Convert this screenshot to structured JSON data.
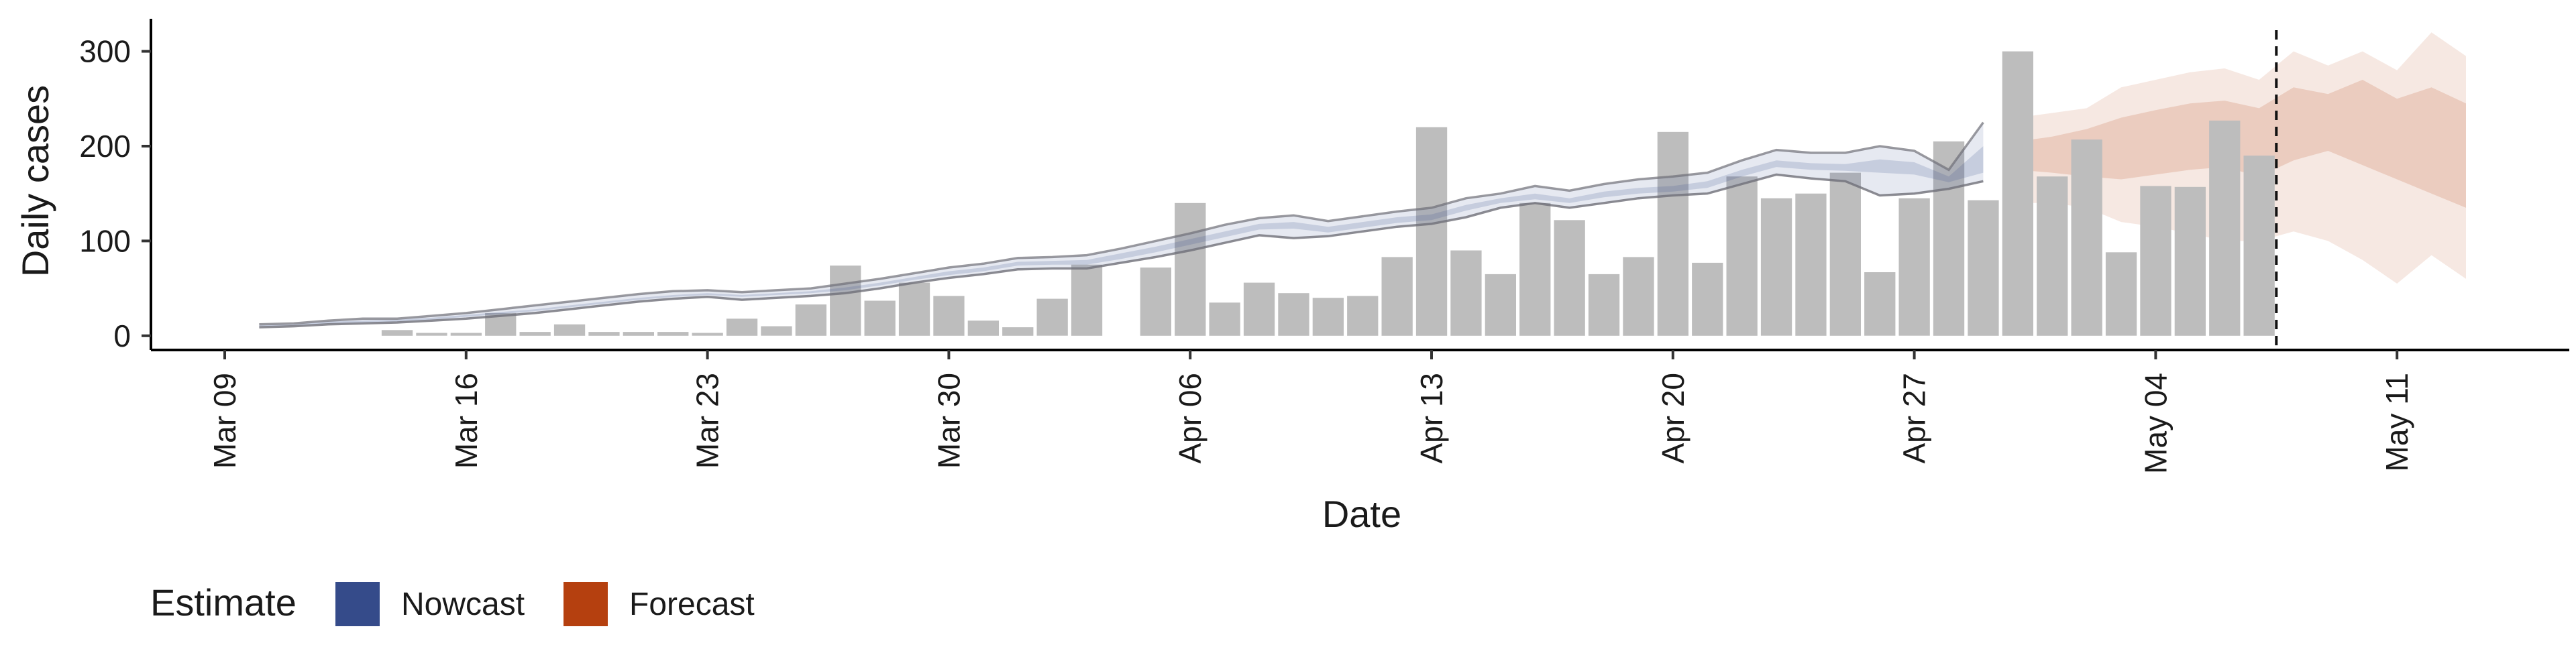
{
  "chart_data": {
    "type": "bar",
    "xlabel": "Date",
    "ylabel": "Daily cases",
    "ylim": [
      -15,
      340
    ],
    "y_ticks": [
      0,
      100,
      200,
      300
    ],
    "x_tick_labels": [
      "Mar 09",
      "Mar 16",
      "Mar 23",
      "Mar 30",
      "Apr 06",
      "Apr 13",
      "Apr 20",
      "Apr 27",
      "May 04",
      "May 11"
    ],
    "x_tick_dates": [
      "2020-03-09",
      "2020-03-16",
      "2020-03-23",
      "2020-03-30",
      "2020-04-06",
      "2020-04-13",
      "2020-04-20",
      "2020-04-27",
      "2020-05-04",
      "2020-05-11"
    ],
    "x_range": [
      "2020-03-09",
      "2020-05-17"
    ],
    "cutoff_date": "2020-05-07",
    "grid": false,
    "legend_position": "bottom-left",
    "legend": {
      "title": "Estimate",
      "items": [
        {
          "label": "Nowcast",
          "color": "#354B8A"
        },
        {
          "label": "Forecast",
          "color": "#B5400F"
        }
      ]
    },
    "colors": {
      "bars": "#bdbdbd",
      "nowcast": "#354B8A",
      "forecast": "#B5400F",
      "nowcast_line": "#6f6f78",
      "cutoff_line": "#111111"
    },
    "observed_cases": {
      "dates": [
        "2020-03-14",
        "2020-03-15",
        "2020-03-16",
        "2020-03-17",
        "2020-03-18",
        "2020-03-19",
        "2020-03-20",
        "2020-03-21",
        "2020-03-22",
        "2020-03-23",
        "2020-03-24",
        "2020-03-25",
        "2020-03-26",
        "2020-03-27",
        "2020-03-28",
        "2020-03-29",
        "2020-03-30",
        "2020-03-31",
        "2020-04-01",
        "2020-04-02",
        "2020-04-03",
        "2020-04-04",
        "2020-04-05",
        "2020-04-06",
        "2020-04-07",
        "2020-04-08",
        "2020-04-09",
        "2020-04-10",
        "2020-04-11",
        "2020-04-12",
        "2020-04-13",
        "2020-04-14",
        "2020-04-15",
        "2020-04-16",
        "2020-04-17",
        "2020-04-18",
        "2020-04-19",
        "2020-04-20",
        "2020-04-21",
        "2020-04-22",
        "2020-04-23",
        "2020-04-24",
        "2020-04-25",
        "2020-04-26",
        "2020-04-27",
        "2020-04-28",
        "2020-04-29",
        "2020-04-30",
        "2020-05-01",
        "2020-05-02",
        "2020-05-03",
        "2020-05-04",
        "2020-05-05",
        "2020-05-06",
        "2020-05-07"
      ],
      "values": [
        6,
        3,
        3,
        24,
        4,
        12,
        4,
        4,
        4,
        3,
        18,
        10,
        33,
        74,
        37,
        56,
        42,
        16,
        9,
        39,
        75,
        0,
        72,
        140,
        35,
        56,
        45,
        40,
        42,
        83,
        220,
        90,
        65,
        140,
        122,
        65,
        83,
        215,
        77,
        168,
        145,
        150,
        172,
        67,
        145,
        205,
        143,
        300,
        168,
        207,
        88,
        158,
        157,
        227,
        190
      ]
    },
    "nowcast": {
      "dates": [
        "2020-03-10",
        "2020-03-11",
        "2020-03-12",
        "2020-03-13",
        "2020-03-14",
        "2020-03-15",
        "2020-03-16",
        "2020-03-17",
        "2020-03-18",
        "2020-03-19",
        "2020-03-20",
        "2020-03-21",
        "2020-03-22",
        "2020-03-23",
        "2020-03-24",
        "2020-03-25",
        "2020-03-26",
        "2020-03-27",
        "2020-03-28",
        "2020-03-29",
        "2020-03-30",
        "2020-03-31",
        "2020-04-01",
        "2020-04-02",
        "2020-04-03",
        "2020-04-04",
        "2020-04-05",
        "2020-04-06",
        "2020-04-07",
        "2020-04-08",
        "2020-04-09",
        "2020-04-10",
        "2020-04-11",
        "2020-04-12",
        "2020-04-13",
        "2020-04-14",
        "2020-04-15",
        "2020-04-16",
        "2020-04-17",
        "2020-04-18",
        "2020-04-19",
        "2020-04-20",
        "2020-04-21",
        "2020-04-22",
        "2020-04-23",
        "2020-04-24",
        "2020-04-25",
        "2020-04-26",
        "2020-04-27",
        "2020-04-28",
        "2020-04-29"
      ],
      "upper_90": [
        12,
        13,
        16,
        18,
        18,
        21,
        24,
        28,
        32,
        36,
        40,
        44,
        47,
        48,
        46,
        48,
        50,
        55,
        60,
        66,
        72,
        76,
        82,
        83,
        85,
        92,
        100,
        108,
        117,
        124,
        127,
        121,
        126,
        131,
        135,
        145,
        150,
        158,
        153,
        160,
        165,
        168,
        172,
        185,
        196,
        193,
        193,
        200,
        195,
        175,
        225
      ],
      "upper_50": [
        11,
        12,
        15,
        16,
        17,
        19,
        22,
        25,
        28,
        32,
        36,
        40,
        43,
        45,
        43,
        45,
        47,
        51,
        56,
        62,
        68,
        72,
        78,
        79,
        80,
        87,
        94,
        102,
        110,
        118,
        120,
        115,
        120,
        125,
        128,
        138,
        145,
        150,
        145,
        152,
        156,
        158,
        163,
        175,
        185,
        182,
        181,
        186,
        183,
        168,
        200
      ],
      "lower_50": [
        10,
        11,
        13,
        14,
        15,
        17,
        20,
        23,
        26,
        30,
        34,
        38,
        41,
        43,
        41,
        43,
        45,
        48,
        53,
        59,
        64,
        68,
        74,
        75,
        75,
        81,
        88,
        96,
        104,
        112,
        113,
        109,
        114,
        119,
        122,
        132,
        140,
        144,
        140,
        146,
        150,
        152,
        156,
        168,
        178,
        175,
        174,
        172,
        170,
        162,
        172
      ],
      "lower_90": [
        9,
        10,
        12,
        13,
        14,
        16,
        18,
        21,
        24,
        28,
        32,
        36,
        39,
        41,
        38,
        40,
        42,
        45,
        50,
        56,
        61,
        65,
        70,
        71,
        71,
        77,
        83,
        90,
        98,
        106,
        103,
        105,
        110,
        115,
        118,
        125,
        135,
        140,
        135,
        140,
        145,
        148,
        150,
        160,
        170,
        166,
        163,
        148,
        150,
        155,
        163
      ]
    },
    "forecast": {
      "dates": [
        "2020-04-30",
        "2020-05-01",
        "2020-05-02",
        "2020-05-03",
        "2020-05-04",
        "2020-05-05",
        "2020-05-06",
        "2020-05-07",
        "2020-05-08",
        "2020-05-09",
        "2020-05-10",
        "2020-05-11",
        "2020-05-12",
        "2020-05-13"
      ],
      "upper_90": [
        230,
        235,
        240,
        262,
        270,
        278,
        282,
        270,
        300,
        285,
        300,
        280,
        320,
        295
      ],
      "upper_50": [
        205,
        210,
        218,
        230,
        238,
        245,
        248,
        240,
        262,
        255,
        270,
        250,
        262,
        245
      ],
      "lower_50": [
        175,
        172,
        168,
        165,
        170,
        175,
        178,
        168,
        185,
        195,
        180,
        165,
        150,
        135
      ],
      "lower_90": [
        140,
        140,
        135,
        120,
        115,
        108,
        100,
        100,
        110,
        100,
        80,
        55,
        85,
        60
      ]
    }
  }
}
